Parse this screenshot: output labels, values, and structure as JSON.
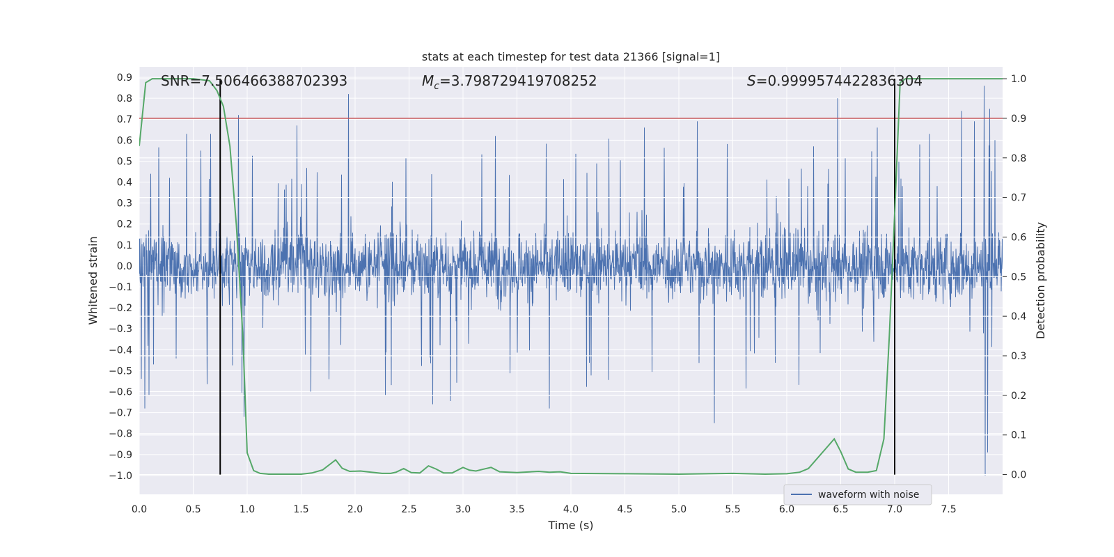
{
  "chart_data": {
    "type": "line",
    "title": "stats at each timestep for test data 21366 [signal=1]",
    "xlabel": "Time (s)",
    "ylabel": "Whitened strain",
    "y2label": "Detection probability",
    "xlim": [
      0.0,
      8.0
    ],
    "ylim": [
      -1.09,
      0.95
    ],
    "y2lim": [
      -0.05,
      1.03
    ],
    "x_ticks": [
      "0.0",
      "0.5",
      "1.0",
      "1.5",
      "2.0",
      "2.5",
      "3.0",
      "3.5",
      "4.0",
      "4.5",
      "5.0",
      "5.5",
      "6.0",
      "6.5",
      "7.0",
      "7.5"
    ],
    "y_ticks": [
      "0.9",
      "0.8",
      "0.7",
      "0.6",
      "0.5",
      "0.4",
      "0.3",
      "0.2",
      "0.1",
      "0.0",
      "-0.1",
      "-0.2",
      "-0.3",
      "-0.4",
      "-0.5",
      "-0.6",
      "-0.7",
      "-0.8",
      "-0.9",
      "-1.0"
    ],
    "y2_ticks": [
      "1.0",
      "0.9",
      "0.8",
      "0.7",
      "0.6",
      "0.5",
      "0.4",
      "0.3",
      "0.2",
      "0.1",
      "0.0"
    ],
    "grid": true,
    "legend_position": "lower-right",
    "annotations": {
      "snr": "SNR=7.506466388702393",
      "mc_symbol": "M",
      "mc_sub": "c",
      "mc_value": "=3.798729419708252",
      "s_symbol": "S",
      "s_value": "=0.9999574422836304"
    },
    "threshold": {
      "value": 0.9,
      "axis": "y2",
      "color": "#c44e52"
    },
    "vlines": {
      "x": [
        0.75,
        7.0
      ],
      "color": "#000000"
    },
    "series": [
      {
        "name": "waveform with noise",
        "color": "#4c72b0",
        "axis": "y1",
        "spikes": [
          {
            "x": 0.05,
            "y": -0.68
          },
          {
            "x": 0.09,
            "y": -0.62
          },
          {
            "x": 0.28,
            "y": 0.42
          },
          {
            "x": 0.44,
            "y": 0.63
          },
          {
            "x": 0.57,
            "y": 0.55
          },
          {
            "x": 0.66,
            "y": 0.63
          },
          {
            "x": 0.92,
            "y": 0.72
          },
          {
            "x": 0.97,
            "y": -0.72
          },
          {
            "x": 1.46,
            "y": 0.67
          },
          {
            "x": 1.59,
            "y": -0.6
          },
          {
            "x": 1.94,
            "y": 0.82
          },
          {
            "x": 2.28,
            "y": -0.62
          },
          {
            "x": 2.72,
            "y": -0.66
          },
          {
            "x": 3.3,
            "y": 0.62
          },
          {
            "x": 3.8,
            "y": -0.68
          },
          {
            "x": 4.68,
            "y": 0.66
          },
          {
            "x": 5.17,
            "y": 0.69
          },
          {
            "x": 5.33,
            "y": -0.75
          },
          {
            "x": 6.47,
            "y": 0.8
          },
          {
            "x": 6.84,
            "y": 0.66
          },
          {
            "x": 7.62,
            "y": 0.74
          },
          {
            "x": 7.74,
            "y": 0.69
          },
          {
            "x": 7.83,
            "y": 0.86
          },
          {
            "x": 7.84,
            "y": -1.0
          },
          {
            "x": 7.86,
            "y": -0.89
          },
          {
            "x": 7.88,
            "y": 0.75
          },
          {
            "x": 7.93,
            "y": 0.6
          }
        ]
      },
      {
        "name": "",
        "color": "#55a868",
        "axis": "y2",
        "points": [
          [
            0.0,
            0.83
          ],
          [
            0.06,
            0.99
          ],
          [
            0.12,
            1.0
          ],
          [
            0.3,
            1.0
          ],
          [
            0.5,
            1.0
          ],
          [
            0.65,
            0.995
          ],
          [
            0.72,
            0.97
          ],
          [
            0.78,
            0.93
          ],
          [
            0.84,
            0.83
          ],
          [
            0.9,
            0.63
          ],
          [
            0.96,
            0.35
          ],
          [
            1.0,
            0.055
          ],
          [
            1.06,
            0.01
          ],
          [
            1.12,
            0.003
          ],
          [
            1.2,
            0.001
          ],
          [
            1.5,
            0.001
          ],
          [
            1.6,
            0.004
          ],
          [
            1.7,
            0.012
          ],
          [
            1.82,
            0.037
          ],
          [
            1.88,
            0.016
          ],
          [
            1.95,
            0.008
          ],
          [
            2.05,
            0.009
          ],
          [
            2.15,
            0.006
          ],
          [
            2.25,
            0.003
          ],
          [
            2.33,
            0.003
          ],
          [
            2.38,
            0.006
          ],
          [
            2.45,
            0.015
          ],
          [
            2.52,
            0.005
          ],
          [
            2.6,
            0.004
          ],
          [
            2.68,
            0.022
          ],
          [
            2.75,
            0.014
          ],
          [
            2.82,
            0.004
          ],
          [
            2.9,
            0.004
          ],
          [
            3.0,
            0.018
          ],
          [
            3.06,
            0.011
          ],
          [
            3.12,
            0.009
          ],
          [
            3.18,
            0.013
          ],
          [
            3.26,
            0.018
          ],
          [
            3.34,
            0.007
          ],
          [
            3.5,
            0.005
          ],
          [
            3.7,
            0.008
          ],
          [
            3.8,
            0.006
          ],
          [
            3.9,
            0.007
          ],
          [
            4.0,
            0.003
          ],
          [
            4.5,
            0.002
          ],
          [
            5.0,
            0.001
          ],
          [
            5.5,
            0.003
          ],
          [
            5.8,
            0.001
          ],
          [
            6.0,
            0.002
          ],
          [
            6.12,
            0.006
          ],
          [
            6.2,
            0.015
          ],
          [
            6.28,
            0.04
          ],
          [
            6.36,
            0.065
          ],
          [
            6.44,
            0.09
          ],
          [
            6.5,
            0.058
          ],
          [
            6.57,
            0.014
          ],
          [
            6.64,
            0.006
          ],
          [
            6.75,
            0.006
          ],
          [
            6.83,
            0.01
          ],
          [
            6.9,
            0.09
          ],
          [
            6.95,
            0.35
          ],
          [
            7.0,
            0.66
          ],
          [
            7.05,
            0.99
          ],
          [
            7.1,
            1.0
          ],
          [
            7.5,
            1.0
          ],
          [
            8.0,
            1.0
          ]
        ]
      }
    ]
  }
}
